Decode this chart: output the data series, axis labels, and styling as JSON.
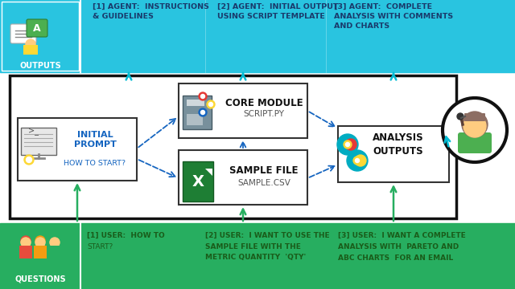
{
  "bg_color": "#ffffff",
  "top_bar_color": "#29c4e0",
  "bottom_bar_color": "#27ae60",
  "arrow_color_cyan": "#00bcd4",
  "arrow_color_green": "#27ae60",
  "arrow_color_dashed": "#1565c0",
  "outputs_label": "OUTPUTS",
  "questions_label": "QUESTIONS",
  "top_texts": [
    "[1] AGENT:  INSTRUCTIONS\n& GUIDELINES",
    "[2] AGENT:  INITIAL OUTPUT\nUSING SCRIPT TEMPLATE",
    "[3] AGENT:  COMPLETE\nANALYSIS WITH COMMENTS\nAND CHARTS"
  ],
  "bottom_texts": [
    "[1] USER:  HOW TO\nSTART?",
    "[2] USER:  I WANT TO USE THE\nSAMPLE FILE WITH THE\nMETRIC QUANTITY  'QTY'",
    "[3] USER:  I WANT A COMPLETE\nANALYSIS WITH  PARETO AND\nABC CHARTS  FOR AN EMAIL"
  ]
}
